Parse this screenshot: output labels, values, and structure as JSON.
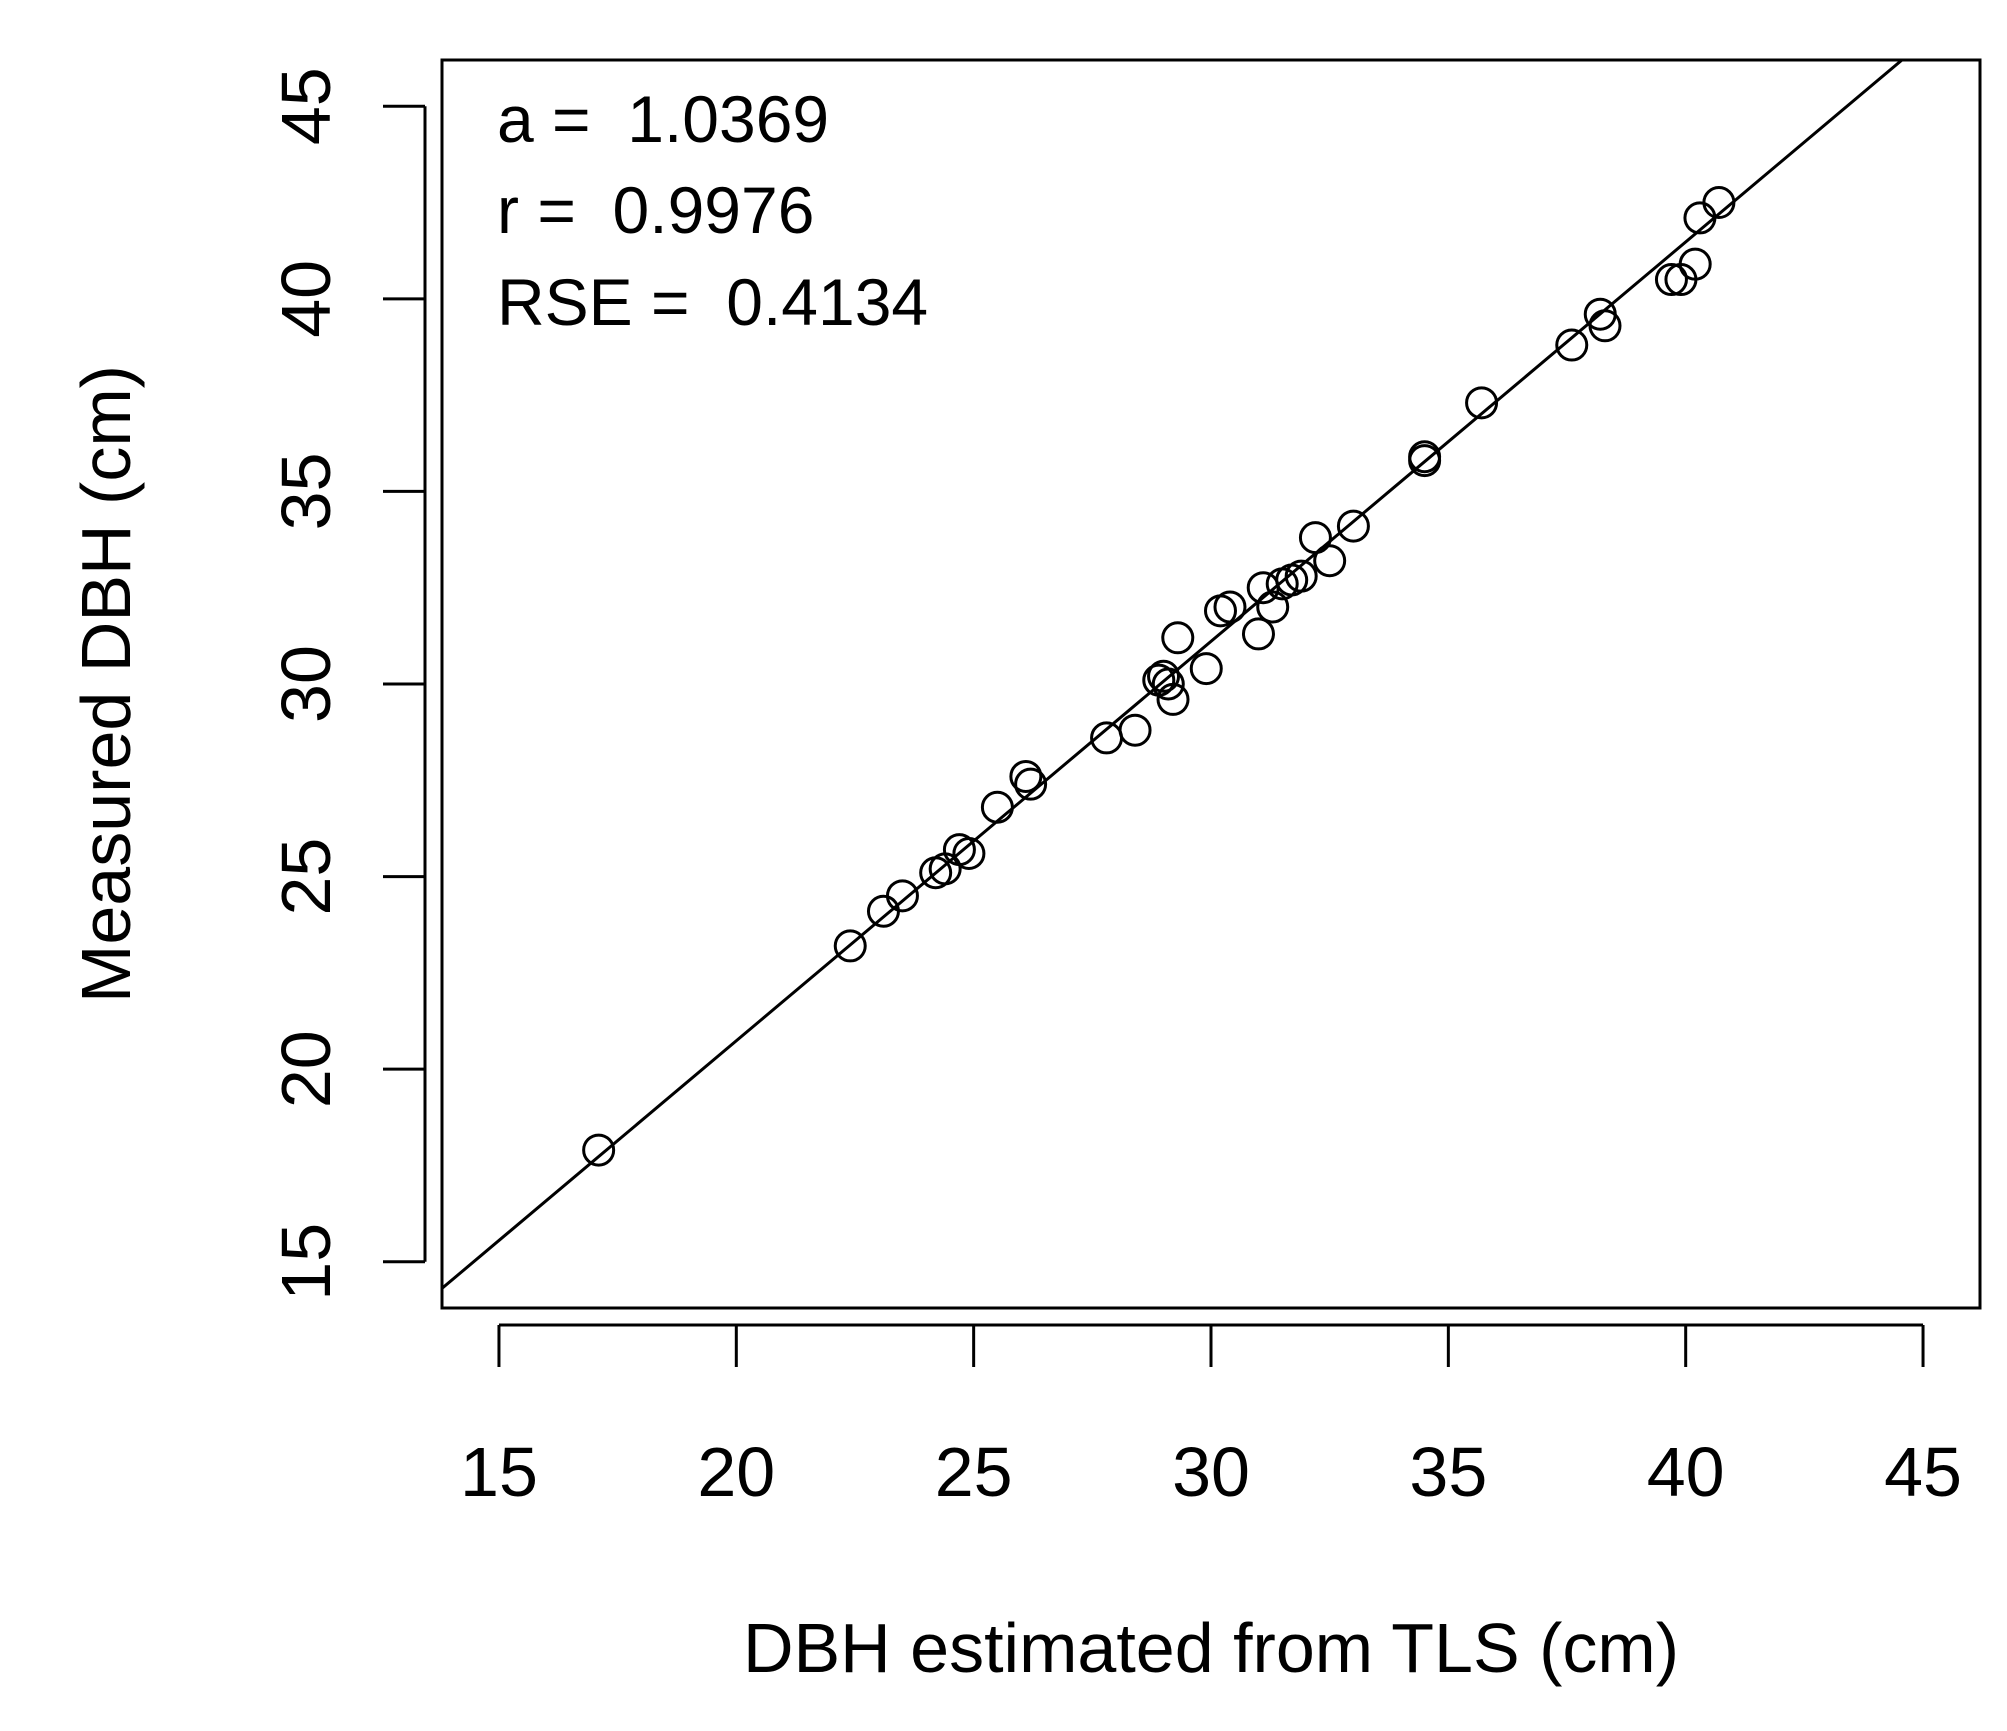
{
  "chart_data": {
    "type": "scatter",
    "title": "",
    "xlabel": "DBH estimated from TLS (cm)",
    "ylabel": "Measured DBH (cm)",
    "xlim": [
      13.8,
      46.2
    ],
    "ylim": [
      13.8,
      46.2
    ],
    "x_ticks": [
      15,
      20,
      25,
      30,
      35,
      40,
      45
    ],
    "y_ticks": [
      15,
      20,
      25,
      30,
      35,
      40,
      45
    ],
    "x_tick_labels": [
      "15",
      "20",
      "25",
      "30",
      "35",
      "40",
      "45"
    ],
    "y_tick_labels": [
      "15",
      "20",
      "25",
      "30",
      "35",
      "40",
      "45"
    ],
    "grid": false,
    "marker": "open-circle",
    "annotations": [
      "a =  1.0369",
      "r =  0.9976",
      "RSE =  0.4134"
    ],
    "fit_line": {
      "slope": 1.0369,
      "intercept": 0
    },
    "points": [
      [
        17.1,
        17.9
      ],
      [
        22.4,
        23.2
      ],
      [
        23.1,
        24.1
      ],
      [
        23.5,
        24.5
      ],
      [
        24.2,
        25.1
      ],
      [
        24.4,
        25.2
      ],
      [
        24.7,
        25.7
      ],
      [
        24.9,
        25.6
      ],
      [
        25.5,
        26.8
      ],
      [
        26.1,
        27.6
      ],
      [
        26.2,
        27.4
      ],
      [
        27.8,
        28.6
      ],
      [
        28.4,
        28.8
      ],
      [
        28.9,
        30.1
      ],
      [
        29.0,
        30.2
      ],
      [
        29.1,
        30.0
      ],
      [
        29.2,
        29.6
      ],
      [
        29.3,
        31.2
      ],
      [
        29.9,
        30.4
      ],
      [
        30.2,
        31.9
      ],
      [
        30.4,
        32.0
      ],
      [
        31.0,
        31.3
      ],
      [
        31.1,
        32.5
      ],
      [
        31.3,
        32.0
      ],
      [
        31.5,
        32.6
      ],
      [
        31.7,
        32.7
      ],
      [
        31.9,
        32.8
      ],
      [
        32.2,
        33.8
      ],
      [
        32.5,
        33.2
      ],
      [
        33.0,
        34.1
      ],
      [
        34.5,
        35.8
      ],
      [
        34.5,
        35.9
      ],
      [
        35.7,
        37.3
      ],
      [
        37.6,
        38.8
      ],
      [
        38.2,
        39.6
      ],
      [
        38.3,
        39.3
      ],
      [
        39.7,
        40.5
      ],
      [
        39.9,
        40.5
      ],
      [
        40.2,
        40.9
      ],
      [
        40.3,
        42.1
      ],
      [
        40.7,
        42.5
      ]
    ]
  }
}
